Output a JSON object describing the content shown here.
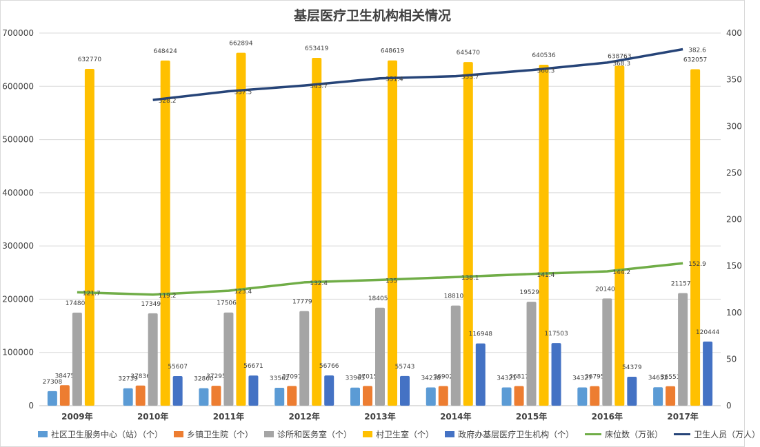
{
  "chart_data": {
    "type": "bar",
    "title": "基层医疗卫生机构相关情况",
    "categories": [
      "2009年",
      "2010年",
      "2011年",
      "2012年",
      "2013年",
      "2014年",
      "2015年",
      "2016年",
      "2017年"
    ],
    "y_left": {
      "ylim": [
        0,
        700000
      ],
      "ticks": [
        "0",
        "100000",
        "200000",
        "300000",
        "400000",
        "500000",
        "600000",
        "700000"
      ]
    },
    "y_right": {
      "ylim": [
        0,
        400
      ],
      "ticks": [
        "0",
        "50",
        "100",
        "150",
        "200",
        "250",
        "300",
        "350",
        "400"
      ]
    },
    "bar_series": [
      {
        "name": "社区卫生服务中心（站）（个）",
        "color": "#5b9bd5",
        "values": [
          27308,
          32739,
          32860,
          33562,
          33965,
          34238,
          34321,
          34327,
          34652
        ],
        "labels": [
          "27308",
          "32739",
          "32860",
          "33562",
          "33965",
          "34238",
          "34321",
          "34327",
          "34652"
        ]
      },
      {
        "name": "乡镇卫生院（个）",
        "color": "#ed7d31",
        "values": [
          38475,
          37836,
          37295,
          37097,
          37015,
          36902,
          36817,
          36795,
          36551
        ],
        "labels": [
          "38475",
          "37836",
          "37295",
          "37097",
          "37015",
          "36902",
          "36817",
          "36795",
          "36551"
        ]
      },
      {
        "name": "诊所和医务室（个）",
        "color": "#a5a5a5",
        "values": [
          174809,
          173490,
          175069,
          177798,
          184050,
          188100,
          195290,
          201408,
          211572
        ],
        "labels": [
          "174809",
          "173490",
          "175069",
          "177798",
          "184050",
          "188100",
          "195290",
          "201408",
          "211572"
        ]
      },
      {
        "name": "村卫生室（个）",
        "color": "#ffc000",
        "values": [
          632770,
          648424,
          662894,
          653419,
          648619,
          645470,
          640536,
          638763,
          632057
        ],
        "labels": [
          "632770",
          "648424",
          "662894",
          "653419",
          "648619",
          "645470",
          "640536",
          "638763",
          "632057"
        ]
      },
      {
        "name": "政府办基层医疗卫生机构（个）",
        "color": "#4472c4",
        "values": [
          null,
          55607,
          56671,
          56766,
          55743,
          116948,
          117503,
          54379,
          120444
        ],
        "labels": [
          "",
          "55607",
          "56671",
          "56766",
          "55743",
          "116948",
          "117503",
          "54379",
          "120444"
        ]
      }
    ],
    "line_series": [
      {
        "name": "床位数（万张）",
        "color": "#70ad47",
        "values": [
          121.7,
          119.2,
          123.4,
          132.4,
          135,
          138.1,
          141.4,
          144.2,
          152.9
        ],
        "labels": [
          "121.7",
          "119.2",
          "123.4",
          "132.4",
          "135",
          "138.1",
          "141.4",
          "144.2",
          "152.9"
        ]
      },
      {
        "name": "卫生人员（万人）",
        "color": "#264478",
        "values": [
          null,
          328.2,
          337.5,
          343.7,
          351.4,
          353.7,
          360.3,
          368.3,
          382.6
        ],
        "labels": [
          "",
          "328.2",
          "337.5",
          "343.7",
          "351.4",
          "353.7",
          "360.3",
          "368.3",
          "382.6"
        ]
      }
    ],
    "legend_position": "bottom",
    "grid": true
  }
}
